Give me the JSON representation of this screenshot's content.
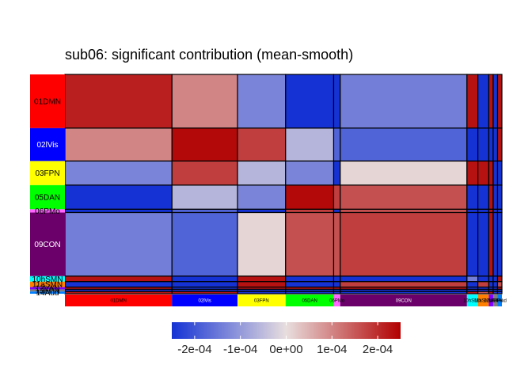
{
  "chart_data": {
    "type": "heatmap",
    "title": "sub06: significant contribution (mean-smooth)",
    "networks": [
      {
        "name": "01DMN",
        "color": "#ff0000",
        "text_color": "#000000",
        "size": 49
      },
      {
        "name": "02lVis",
        "color": "#0000ff",
        "text_color": "#ffffff",
        "size": 30
      },
      {
        "name": "03FPN",
        "color": "#ffff00",
        "text_color": "#000000",
        "size": 22
      },
      {
        "name": "05DAN",
        "color": "#00ff00",
        "text_color": "#000000",
        "size": 22
      },
      {
        "name": "06PMo",
        "color": "#ff66ff",
        "text_color": "#000000",
        "size": 3
      },
      {
        "name": "09CON",
        "color": "#6b006b",
        "text_color": "#ffffff",
        "size": 58
      },
      {
        "name": "10hSMN",
        "color": "#00ffff",
        "text_color": "#000000",
        "size": 5
      },
      {
        "name": "11aSMN",
        "color": "#ff8000",
        "text_color": "#000000",
        "size": 5
      },
      {
        "name": "12VAN",
        "color": "#7f00ff",
        "text_color": "#000000",
        "size": 2
      },
      {
        "name": "13FPN",
        "color": "#808080",
        "text_color": "#000000",
        "size": 2
      },
      {
        "name": "14Aud",
        "color": "#007fff",
        "text_color": "#000000",
        "size": 2
      }
    ],
    "row_labels": [
      "01DMN",
      "02lVis",
      "03FPN",
      "05DAN",
      "06PMo",
      "09CON",
      "10hSMN",
      "11aSMN",
      "12VAN",
      "13FPN",
      "14Aud"
    ],
    "col_labels": [
      "01DMN",
      "02lVis",
      "03FPN",
      "05DAN",
      "06PMo",
      "09CON",
      "10hSMN",
      "11aSMN",
      "12VAN",
      "13FPN",
      "14Aud"
    ],
    "values": [
      [
        0.000215,
        0.0001,
        -0.00013,
        -0.00025,
        -0.00025,
        -0.00014,
        0.00023,
        -0.00025,
        0.00023,
        -0.00025,
        0.00023
      ],
      [
        0.0001,
        0.00024,
        0.00018,
        -6e-05,
        -0.00018,
        -0.00018,
        -0.00025,
        -0.00025,
        -0.00025,
        -0.00025,
        0.00023
      ],
      [
        -0.00013,
        0.00018,
        -6e-05,
        -0.00013,
        -0.00025,
        1e-05,
        0.00023,
        0.00023,
        0.00023,
        -0.00025,
        -0.00025
      ],
      [
        -0.00025,
        -6e-05,
        -0.00013,
        0.00024,
        0.00018,
        0.00016,
        -0.00025,
        -0.00025,
        0.00023,
        -0.00025,
        -0.00025
      ],
      [
        -0.00025,
        -0.00018,
        -0.00025,
        0.00018,
        -0.00025,
        0.00016,
        -0.00025,
        -0.00025,
        0.00023,
        -0.00025,
        -0.00025
      ],
      [
        -0.00014,
        -0.00018,
        1e-05,
        0.00016,
        0.00016,
        0.00018,
        -0.00025,
        -0.00025,
        0.00023,
        -0.00025,
        -0.00025
      ],
      [
        0.00023,
        -0.00025,
        0.00023,
        -0.00025,
        -0.00025,
        -0.00025,
        -0.00014,
        -0.00025,
        -0.00025,
        -0.00025,
        0.00023
      ],
      [
        -0.00025,
        -0.00025,
        0.00023,
        -0.00025,
        -0.00025,
        0.00018,
        -0.00025,
        0.00018,
        -0.00025,
        -0.00025,
        0.00016
      ],
      [
        0.00023,
        -0.00025,
        0.00023,
        0.00023,
        0.00023,
        0.00023,
        -0.00025,
        -0.00025,
        -0.00025,
        -0.00025,
        0.00023
      ],
      [
        -0.00025,
        -0.00025,
        -0.00025,
        -0.00025,
        -0.00025,
        -0.00025,
        -0.00025,
        -0.00025,
        -0.00025,
        -0.00025,
        -0.00025
      ],
      [
        0.00023,
        0.00023,
        -0.00025,
        -0.00025,
        -0.00025,
        -0.00025,
        0.00023,
        0.00016,
        0.00023,
        -0.00025,
        -0.00025
      ]
    ],
    "colorbar": {
      "range": [
        -0.00025,
        0.00025
      ],
      "ticks": [
        -0.0002,
        -0.0001,
        0.0,
        0.0001,
        0.0002
      ],
      "tick_labels": [
        "-2e-04",
        "-1e-04",
        "0e+00",
        "1e-04",
        "2e-04"
      ],
      "low_color": "#1533d4",
      "mid_color": "#e8dede",
      "high_color": "#b20000",
      "legend_position": "bottom"
    }
  }
}
